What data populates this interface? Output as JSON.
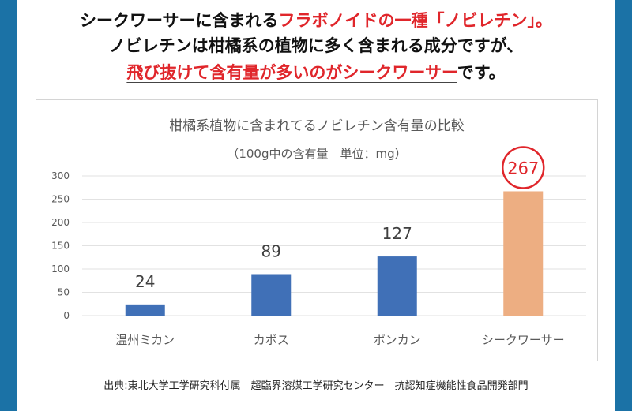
{
  "headline": {
    "line1_pre": "シークワーサーに含まれる",
    "line1_red": "フラボノイドの一種「ノビレチン」",
    "line1_post": "。",
    "line2": "ノビレチンは柑橘系の植物に多く含まれる成分ですが、",
    "line3_red": "飛び抜けて含有量が多いのがシークワーサー",
    "line3_post": "です。"
  },
  "source": "出典:東北大学工学研究科付属　超臨界溶媒工学研究センター　抗認知症機能性食品開発部門",
  "colors": {
    "background": "#1b72a6",
    "bar": "#4070b7",
    "highlight_bar": "#edae82",
    "highlight_ring": "#e0262b",
    "accent_text": "#e0262b"
  },
  "chart_data": {
    "type": "bar",
    "title": "柑橘系植物に含まれてるノビレチン含有量の比較",
    "subtitle": "（100g中の含有量　単位：mg）",
    "categories": [
      "温州ミカン",
      "カボス",
      "ポンカン",
      "シークワーサー"
    ],
    "values": [
      24,
      89,
      127,
      267
    ],
    "data_labels": [
      "24",
      "89",
      "127",
      "267"
    ],
    "highlight_index": 3,
    "ylim": [
      0,
      300
    ],
    "yticks": [
      "0",
      "50",
      "100",
      "150",
      "200",
      "250",
      "300"
    ],
    "grid": true,
    "xlabel": "",
    "ylabel": ""
  }
}
